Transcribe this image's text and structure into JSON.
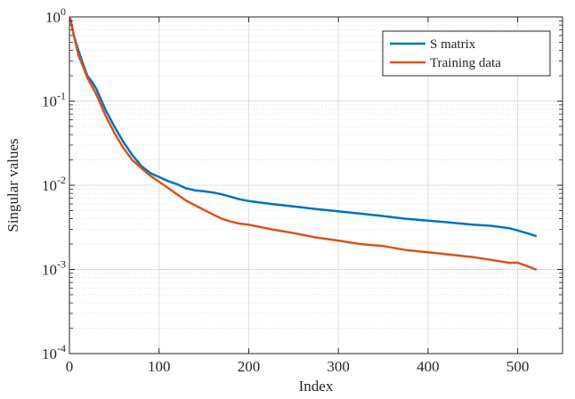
{
  "chart_data": {
    "type": "line",
    "xlabel": "Index",
    "ylabel": "Singular values",
    "xlim": [
      0,
      550
    ],
    "ylim": [
      0.0001,
      1
    ],
    "y_scale": "log",
    "grid": true,
    "minor_grid": true,
    "legend_position": "top-right",
    "x_ticks": [
      0,
      100,
      200,
      300,
      400,
      500
    ],
    "x_tick_labels": [
      "0",
      "100",
      "200",
      "300",
      "400",
      "500"
    ],
    "y_ticks": [
      1,
      0.1,
      0.01,
      0.001,
      0.0001
    ],
    "y_tick_labels": [
      {
        "base": "10",
        "exp": "0"
      },
      {
        "base": "10",
        "exp": "-1"
      },
      {
        "base": "10",
        "exp": "-2"
      },
      {
        "base": "10",
        "exp": "-3"
      },
      {
        "base": "10",
        "exp": "-4"
      }
    ],
    "series": [
      {
        "name": "S matrix",
        "color": "#0072BD",
        "x": [
          1,
          5,
          10,
          15,
          20,
          25,
          30,
          40,
          50,
          60,
          70,
          80,
          90,
          100,
          110,
          120,
          130,
          140,
          150,
          160,
          170,
          180,
          190,
          200,
          225,
          250,
          275,
          300,
          325,
          350,
          375,
          400,
          425,
          450,
          470,
          490,
          500,
          510,
          520
        ],
        "y": [
          0.95,
          0.6,
          0.4,
          0.28,
          0.2,
          0.17,
          0.14,
          0.08,
          0.05,
          0.033,
          0.023,
          0.017,
          0.014,
          0.0125,
          0.0112,
          0.0103,
          0.0092,
          0.0087,
          0.0085,
          0.0082,
          0.0078,
          0.0073,
          0.0068,
          0.0065,
          0.006,
          0.0056,
          0.0052,
          0.0049,
          0.0046,
          0.0043,
          0.004,
          0.0038,
          0.0036,
          0.0034,
          0.0033,
          0.0031,
          0.0029,
          0.0027,
          0.0025
        ]
      },
      {
        "name": "Training data",
        "color": "#D95319",
        "x": [
          1,
          5,
          10,
          15,
          20,
          25,
          30,
          40,
          50,
          60,
          70,
          80,
          90,
          100,
          110,
          120,
          130,
          140,
          150,
          160,
          170,
          180,
          190,
          200,
          225,
          250,
          275,
          300,
          325,
          350,
          375,
          400,
          425,
          450,
          470,
          490,
          500,
          510,
          520
        ],
        "y": [
          0.95,
          0.6,
          0.35,
          0.26,
          0.19,
          0.15,
          0.12,
          0.068,
          0.042,
          0.028,
          0.02,
          0.016,
          0.013,
          0.011,
          0.0093,
          0.0078,
          0.0066,
          0.0058,
          0.0051,
          0.0045,
          0.004,
          0.0037,
          0.0035,
          0.0034,
          0.003,
          0.0027,
          0.0024,
          0.0022,
          0.002,
          0.0019,
          0.0017,
          0.0016,
          0.0015,
          0.0014,
          0.0013,
          0.0012,
          0.0012,
          0.0011,
          0.001
        ]
      }
    ]
  }
}
